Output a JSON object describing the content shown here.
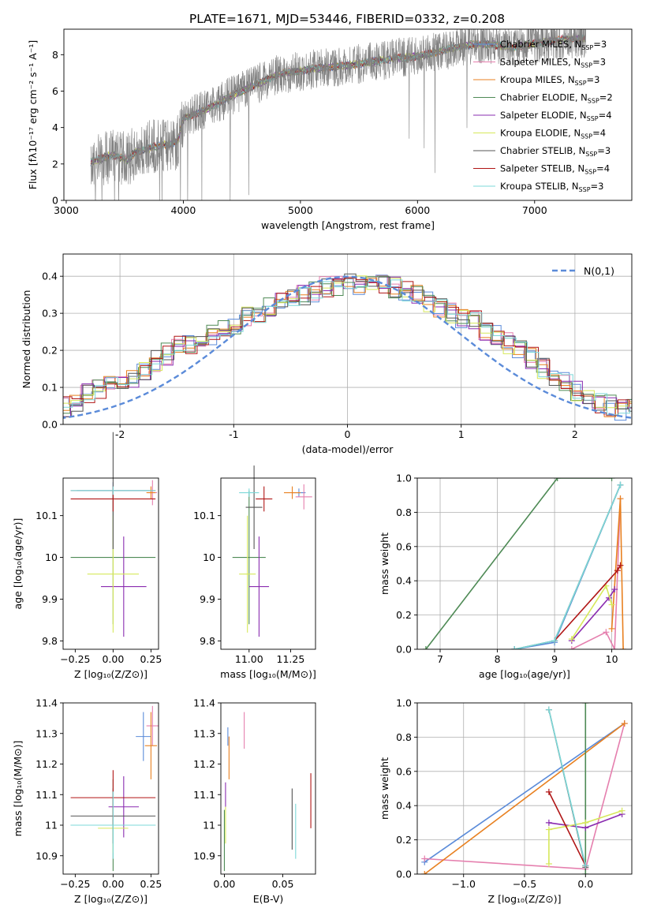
{
  "title": "PLATE=1671, MJD=53446, FIBERID=0332, z=0.208",
  "colors": {
    "Chabrier MILES": "#5b8bd9",
    "Salpeter MILES": "#e57fae",
    "Kroupa MILES": "#e88020",
    "Chabrier ELODIE": "#4e8a55",
    "Salpeter ELODIE": "#8a2cb0",
    "Kroupa ELODIE": "#d6e85a",
    "Chabrier STELIB": "#545454",
    "Salpeter STELIB": "#b01515",
    "Kroupa STELIB": "#7cd8d8",
    "data": "#808080",
    "gauss": "#5b8bd9"
  },
  "models": [
    "Chabrier MILES",
    "Salpeter MILES",
    "Kroupa MILES",
    "Chabrier ELODIE",
    "Salpeter ELODIE",
    "Kroupa ELODIE",
    "Chabrier STELIB",
    "Salpeter STELIB",
    "Kroupa STELIB"
  ],
  "legend_spectrum": [
    {
      "model": "Chabrier MILES",
      "label": "Chabrier MILES, N",
      "sub": "SSP",
      "tail": "=3"
    },
    {
      "model": "Salpeter MILES",
      "label": "Salpeter MILES, N",
      "sub": "SSP",
      "tail": "=3"
    },
    {
      "model": "Kroupa MILES",
      "label": "Kroupa MILES, N",
      "sub": "SSP",
      "tail": "=3"
    },
    {
      "model": "Chabrier ELODIE",
      "label": "Chabrier ELODIE, N",
      "sub": "SSP",
      "tail": "=2"
    },
    {
      "model": "Salpeter ELODIE",
      "label": "Salpeter ELODIE, N",
      "sub": "SSP",
      "tail": "=4"
    },
    {
      "model": "Kroupa ELODIE",
      "label": "Kroupa ELODIE, N",
      "sub": "SSP",
      "tail": "=4"
    },
    {
      "model": "Chabrier STELIB",
      "label": "Chabrier STELIB, N",
      "sub": "SSP",
      "tail": "=3"
    },
    {
      "model": "Salpeter STELIB",
      "label": "Salpeter STELIB, N",
      "sub": "SSP",
      "tail": "=4"
    },
    {
      "model": "Kroupa STELIB",
      "label": "Kroupa STELIB, N",
      "sub": "SSP",
      "tail": "=3"
    }
  ],
  "chart_data": [
    {
      "id": "spectrum",
      "type": "line",
      "xlabel": "wavelength [Angstrom, rest frame]",
      "ylabel": "Flux [fλ10⁻¹⁷ erg cm⁻² s⁻¹ A⁻¹]",
      "xlim": [
        2980,
        7830
      ],
      "ylim": [
        0,
        9.4
      ],
      "xticks": [
        3000,
        4000,
        5000,
        6000,
        7000
      ],
      "yticks": [
        0,
        2,
        4,
        6,
        8
      ],
      "continuum": {
        "x": [
          3210,
          3400,
          3520,
          3600,
          3800,
          3950,
          4000,
          4200,
          4400,
          4600,
          4800,
          5000,
          5200,
          5400,
          5600,
          5800,
          6000,
          6200,
          6400,
          6600,
          6800,
          7000,
          7200,
          7430
        ],
        "y": [
          2.1,
          2.5,
          2.2,
          2.7,
          3.0,
          3.2,
          4.5,
          5.0,
          5.7,
          6.3,
          6.9,
          7.1,
          7.3,
          7.4,
          7.6,
          7.8,
          7.9,
          8.2,
          8.5,
          8.6,
          8.4,
          8.6,
          8.8,
          8.9
        ]
      }
    },
    {
      "id": "residuals",
      "type": "step",
      "xlabel": "(data-model)/error",
      "ylabel": "Normed distribution",
      "xlim": [
        -2.5,
        2.5
      ],
      "ylim": [
        0,
        0.46
      ],
      "xticks": [
        -2,
        -1,
        0,
        1,
        2
      ],
      "yticks": [
        0.0,
        0.1,
        0.2,
        0.3,
        0.4
      ],
      "grid": true,
      "legend": "N(0,1)",
      "bin_width": 0.1,
      "hist_base": [
        0.03,
        0.03,
        0.03,
        0.04,
        0.05,
        0.06,
        0.08,
        0.09,
        0.1,
        0.11,
        0.13,
        0.15,
        0.17,
        0.19,
        0.21,
        0.22,
        0.22,
        0.24,
        0.26,
        0.27,
        0.29,
        0.3,
        0.32,
        0.33,
        0.34,
        0.35,
        0.36,
        0.37,
        0.37,
        0.38,
        0.38,
        0.39,
        0.38,
        0.37,
        0.36,
        0.35,
        0.33,
        0.31,
        0.3,
        0.29,
        0.28,
        0.25,
        0.24,
        0.22,
        0.2,
        0.18,
        0.15,
        0.13,
        0.11,
        0.09,
        0.08,
        0.06,
        0.05,
        0.04,
        0.04,
        0.03,
        0.03,
        0.03,
        0.02,
        0.02
      ]
    },
    {
      "id": "age_vs_Z",
      "type": "errorbar",
      "xlabel": "Z [log₁₀(Z/Z⊙)]",
      "ylabel": "age  [log₁₀(age/yr)]",
      "xlim": [
        -0.33,
        0.3
      ],
      "ylim": [
        9.78,
        10.19
      ],
      "xticks": [
        -0.25,
        0.0,
        0.25
      ],
      "xticklabels": [
        "−0.25",
        "0.00",
        "0.25"
      ],
      "yticks": [
        9.8,
        9.9,
        10.0,
        10.1
      ],
      "points": [
        {
          "model": "Chabrier MILES",
          "x": 0.0,
          "y": 10.16,
          "xerr": 0.24,
          "yerr": 0.02
        },
        {
          "model": "Salpeter MILES",
          "x": 0.26,
          "y": 10.155,
          "xerr": 0.03,
          "yerr": 0.03
        },
        {
          "model": "Kroupa MILES",
          "x": 0.25,
          "y": 10.155,
          "xerr": 0.03,
          "yerr": 0.015
        },
        {
          "model": "Chabrier ELODIE",
          "x": 0.0,
          "y": 10.0,
          "xerr": 0.28,
          "yerr": 0.16
        },
        {
          "model": "Salpeter ELODIE",
          "x": 0.07,
          "y": 9.93,
          "xerr": 0.15,
          "yerr": 0.12
        },
        {
          "model": "Kroupa ELODIE",
          "x": 0.0,
          "y": 9.96,
          "xerr": 0.17,
          "yerr": 0.14
        },
        {
          "model": "Chabrier STELIB",
          "x": 0.0,
          "y": 10.16,
          "xerr": 0.28,
          "yerr": 0.14
        },
        {
          "model": "Salpeter STELIB",
          "x": 0.0,
          "y": 10.14,
          "xerr": 0.28,
          "yerr": 0.03
        },
        {
          "model": "Kroupa STELIB",
          "x": 0.0,
          "y": 10.16,
          "xerr": 0.28,
          "yerr": 0.01
        }
      ]
    },
    {
      "id": "age_vs_mass",
      "type": "errorbar",
      "xlabel": "mass [log₁₀(M/M⊙)]",
      "ylabel": "",
      "xlim": [
        10.83,
        11.4
      ],
      "ylim": [
        9.78,
        10.19
      ],
      "xticks": [
        11.0,
        11.25
      ],
      "xticklabels": [
        "11.00",
        "11.25"
      ],
      "yticks": [
        9.8,
        9.9,
        10.0,
        10.1
      ],
      "points": [
        {
          "model": "Chabrier MILES",
          "x": 11.3,
          "y": 10.155,
          "xerr": 0.04,
          "yerr": 0.01
        },
        {
          "model": "Salpeter MILES",
          "x": 11.33,
          "y": 10.145,
          "xerr": 0.05,
          "yerr": 0.03
        },
        {
          "model": "Kroupa MILES",
          "x": 11.26,
          "y": 10.155,
          "xerr": 0.05,
          "yerr": 0.015
        },
        {
          "model": "Chabrier ELODIE",
          "x": 11.0,
          "y": 10.0,
          "xerr": 0.1,
          "yerr": 0.16
        },
        {
          "model": "Salpeter ELODIE",
          "x": 11.06,
          "y": 9.93,
          "xerr": 0.06,
          "yerr": 0.12
        },
        {
          "model": "Kroupa ELODIE",
          "x": 10.99,
          "y": 9.96,
          "xerr": 0.05,
          "yerr": 0.14
        },
        {
          "model": "Chabrier STELIB",
          "x": 11.03,
          "y": 10.12,
          "xerr": 0.05,
          "yerr": 0.1
        },
        {
          "model": "Salpeter STELIB",
          "x": 11.09,
          "y": 10.14,
          "xerr": 0.05,
          "yerr": 0.03
        },
        {
          "model": "Kroupa STELIB",
          "x": 11.0,
          "y": 10.155,
          "xerr": 0.06,
          "yerr": 0.01
        }
      ]
    },
    {
      "id": "weight_vs_age",
      "type": "line",
      "xlabel": "age  [log₁₀(age/yr)]",
      "ylabel": "mass weight",
      "xlim": [
        6.6,
        10.35
      ],
      "ylim": [
        0,
        1.0
      ],
      "xticks": [
        7,
        8,
        9,
        10
      ],
      "yticks": [
        0.0,
        0.2,
        0.4,
        0.6,
        0.8,
        1.0
      ],
      "grid": true,
      "series": [
        {
          "model": "Chabrier MILES",
          "x": [
            8.3,
            9.0,
            10.15
          ],
          "y": [
            0.0,
            0.04,
            0.96
          ]
        },
        {
          "model": "Salpeter MILES",
          "x": [
            9.3,
            9.9,
            10.05,
            10.15
          ],
          "y": [
            0.0,
            0.1,
            0.0,
            0.88
          ]
        },
        {
          "model": "Kroupa MILES",
          "x": [
            10.0,
            10.15,
            10.2
          ],
          "y": [
            0.12,
            0.88,
            0.0
          ]
        },
        {
          "model": "Chabrier ELODIE",
          "x": [
            6.75,
            9.05,
            10.0
          ],
          "y": [
            0.0,
            1.0,
            1.0
          ]
        },
        {
          "model": "Salpeter ELODIE",
          "x": [
            9.3,
            9.95,
            10.05
          ],
          "y": [
            0.05,
            0.3,
            0.35
          ]
        },
        {
          "model": "Kroupa ELODIE",
          "x": [
            9.3,
            9.9,
            10.0
          ],
          "y": [
            0.06,
            0.37,
            0.26
          ]
        },
        {
          "model": "Chabrier STELIB",
          "x": [
            8.3,
            9.0,
            10.15
          ],
          "y": [
            0.0,
            0.05,
            0.96
          ]
        },
        {
          "model": "Salpeter STELIB",
          "x": [
            9.0,
            10.1,
            10.15
          ],
          "y": [
            0.05,
            0.46,
            0.49
          ]
        },
        {
          "model": "Kroupa STELIB",
          "x": [
            8.3,
            9.0,
            10.15
          ],
          "y": [
            0.0,
            0.05,
            0.96
          ]
        }
      ]
    },
    {
      "id": "mass_vs_Z",
      "type": "errorbar",
      "xlabel": "Z [log₁₀(Z/Z⊙)]",
      "ylabel": "mass [log₁₀(M/M⊙)]",
      "xlim": [
        -0.33,
        0.3
      ],
      "ylim": [
        10.84,
        11.4
      ],
      "xticks": [
        -0.25,
        0.0,
        0.25
      ],
      "xticklabels": [
        "−0.25",
        "0.00",
        "0.25"
      ],
      "yticks": [
        10.9,
        11.0,
        11.1,
        11.2,
        11.3,
        11.4
      ],
      "points": [
        {
          "model": "Chabrier MILES",
          "x": 0.2,
          "y": 11.29,
          "xerr": 0.05,
          "yerr": 0.08
        },
        {
          "model": "Salpeter MILES",
          "x": 0.26,
          "y": 11.325,
          "xerr": 0.04,
          "yerr": 0.065
        },
        {
          "model": "Kroupa MILES",
          "x": 0.25,
          "y": 11.26,
          "xerr": 0.04,
          "yerr": 0.11
        },
        {
          "model": "Chabrier ELODIE",
          "x": 0.0,
          "y": 11.0,
          "xerr": 0.28,
          "yerr": 0.15
        },
        {
          "model": "Salpeter ELODIE",
          "x": 0.07,
          "y": 11.06,
          "xerr": 0.1,
          "yerr": 0.1
        },
        {
          "model": "Kroupa ELODIE",
          "x": 0.0,
          "y": 10.99,
          "xerr": 0.1,
          "yerr": 0.08
        },
        {
          "model": "Chabrier STELIB",
          "x": 0.0,
          "y": 11.03,
          "xerr": 0.28,
          "yerr": 0.09
        },
        {
          "model": "Salpeter STELIB",
          "x": 0.0,
          "y": 11.09,
          "xerr": 0.28,
          "yerr": 0.09
        },
        {
          "model": "Kroupa STELIB",
          "x": 0.0,
          "y": 11.0,
          "xerr": 0.28,
          "yerr": 0.11
        }
      ]
    },
    {
      "id": "mass_vs_EBV",
      "type": "errorbar",
      "xlabel": "E(B-V)",
      "ylabel": "",
      "xlim": [
        -0.003,
        0.078
      ],
      "ylim": [
        10.84,
        11.4
      ],
      "xticks": [
        0.0,
        0.05
      ],
      "xticklabels": [
        "0.00",
        "0.05"
      ],
      "yticks": [
        10.9,
        11.0,
        11.1,
        11.2,
        11.3,
        11.4
      ],
      "points": [
        {
          "model": "Chabrier MILES",
          "x": 0.003,
          "y": 11.29,
          "xerr": 0,
          "yerr": 0.03
        },
        {
          "model": "Salpeter MILES",
          "x": 0.017,
          "y": 11.31,
          "xerr": 0,
          "yerr": 0.06
        },
        {
          "model": "Kroupa MILES",
          "x": 0.004,
          "y": 11.22,
          "xerr": 0,
          "yerr": 0.07
        },
        {
          "model": "Chabrier ELODIE",
          "x": 0.0,
          "y": 10.95,
          "xerr": 0,
          "yerr": 0.1
        },
        {
          "model": "Salpeter ELODIE",
          "x": 0.001,
          "y": 11.1,
          "xerr": 0,
          "yerr": 0.04
        },
        {
          "model": "Kroupa ELODIE",
          "x": 0.001,
          "y": 11.0,
          "xerr": 0,
          "yerr": 0.06
        },
        {
          "model": "Chabrier STELIB",
          "x": 0.058,
          "y": 11.02,
          "xerr": 0,
          "yerr": 0.1
        },
        {
          "model": "Salpeter STELIB",
          "x": 0.074,
          "y": 11.08,
          "xerr": 0,
          "yerr": 0.09
        },
        {
          "model": "Kroupa STELIB",
          "x": 0.061,
          "y": 10.98,
          "xerr": 0,
          "yerr": 0.09
        }
      ]
    },
    {
      "id": "weight_vs_Z",
      "type": "line",
      "xlabel": "Z [log₁₀(Z/Z⊙)]",
      "ylabel": "mass weight",
      "xlim": [
        -1.38,
        0.38
      ],
      "ylim": [
        0,
        1.0
      ],
      "xticks": [
        -1.0,
        -0.5,
        0.0
      ],
      "xticklabels": [
        "−1.0",
        "−0.5",
        "0.0"
      ],
      "yticks": [
        0.0,
        0.2,
        0.4,
        0.6,
        0.8,
        1.0
      ],
      "grid": true,
      "series": [
        {
          "model": "Chabrier MILES",
          "x": [
            -1.32,
            0.32
          ],
          "y": [
            0.07,
            0.88
          ]
        },
        {
          "model": "Salpeter MILES",
          "x": [
            -1.32,
            0.0,
            0.32
          ],
          "y": [
            0.09,
            0.03,
            0.88
          ]
        },
        {
          "model": "Kroupa MILES",
          "x": [
            -1.32,
            0.32
          ],
          "y": [
            0.0,
            0.88
          ]
        },
        {
          "model": "Chabrier ELODIE",
          "x": [
            0.0,
            0.0
          ],
          "y": [
            0.0,
            1.0
          ]
        },
        {
          "model": "Salpeter ELODIE",
          "x": [
            -0.3,
            0.0,
            0.3
          ],
          "y": [
            0.3,
            0.27,
            0.35
          ]
        },
        {
          "model": "Kroupa ELODIE",
          "x": [
            -0.3,
            -0.3,
            0.0,
            0.3
          ],
          "y": [
            0.06,
            0.26,
            0.3,
            0.37
          ]
        },
        {
          "model": "Chabrier STELIB",
          "x": [
            -0.3,
            0.0
          ],
          "y": [
            0.96,
            0.04
          ]
        },
        {
          "model": "Salpeter STELIB",
          "x": [
            -0.3,
            0.0
          ],
          "y": [
            0.48,
            0.05
          ]
        },
        {
          "model": "Kroupa STELIB",
          "x": [
            -0.3,
            0.0
          ],
          "y": [
            0.96,
            0.05
          ]
        }
      ]
    }
  ]
}
